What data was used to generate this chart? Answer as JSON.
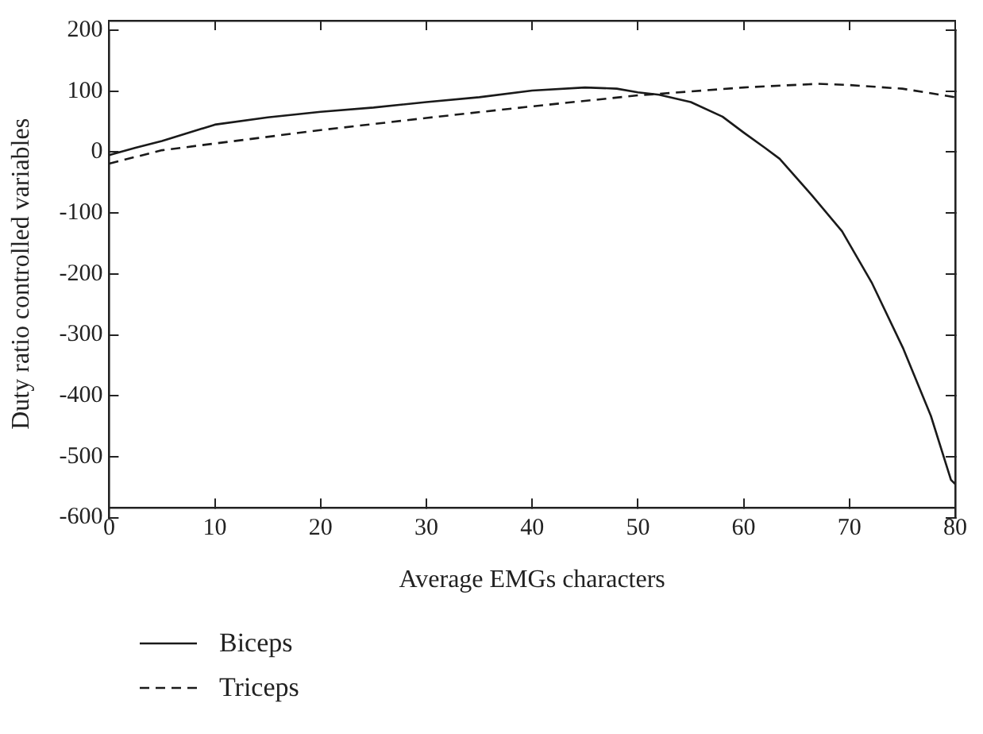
{
  "chart_data": {
    "type": "line",
    "xlabel": "Average EMGs characters",
    "ylabel": "Duty ratio controlled variables",
    "xlim": [
      0,
      80
    ],
    "xticks": [
      0,
      10,
      20,
      30,
      40,
      50,
      60,
      70,
      80
    ],
    "ylim": [
      -600,
      200
    ],
    "yticks": [
      200,
      100,
      0,
      {
        "value": -100,
        "label": "-100"
      },
      {
        "value": -200,
        "label": "-200"
      },
      {
        "value": -300,
        "label": "-300"
      },
      {
        "value": -400,
        "label": "-400"
      },
      {
        "value": -500,
        "label": "-500"
      },
      {
        "value": -600,
        "label": "-600"
      }
    ],
    "grid": false,
    "legend": "bottom left",
    "marker": "none",
    "series": [
      {
        "name": "Biceps",
        "color": "#1a1a1a",
        "line_style": "solid",
        "x": [
          0,
          2.5,
          5,
          10,
          15,
          20,
          25,
          30,
          35,
          40,
          45,
          48,
          50,
          52,
          55,
          58,
          60,
          62,
          63.4,
          66.4,
          69.3,
          72.1,
          75.1,
          77.7,
          79.6,
          80
        ],
        "values": [
          -5,
          7,
          18,
          45,
          57,
          66,
          73,
          82,
          90,
          101,
          106,
          104,
          98,
          94,
          82,
          58,
          32,
          7,
          -11,
          -70,
          -130,
          -214,
          -323,
          -433,
          -538,
          -545
        ]
      },
      {
        "name": "Triceps",
        "color": "#1a1a1a",
        "line_style": "dashed",
        "x": [
          0,
          5,
          10,
          20,
          30,
          40,
          50,
          60,
          67,
          70,
          75,
          80
        ],
        "values": [
          -19,
          3,
          14,
          36,
          56,
          75,
          93,
          106,
          112,
          110,
          104,
          90
        ]
      }
    ]
  }
}
